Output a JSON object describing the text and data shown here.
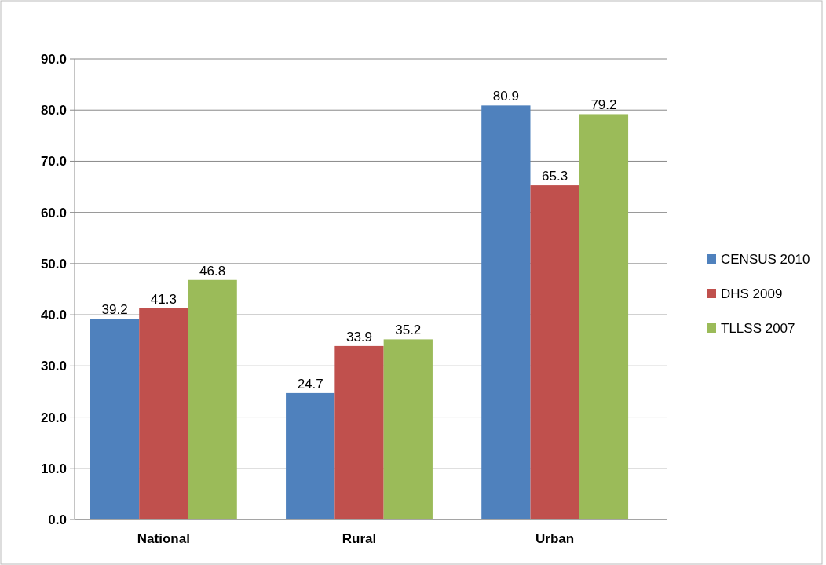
{
  "chart_data": {
    "type": "bar",
    "categories": [
      "National",
      "Rural",
      "Urban"
    ],
    "series": [
      {
        "name": "CENSUS 2010",
        "color": "#4f81bd",
        "values": [
          39.2,
          24.7,
          80.9
        ]
      },
      {
        "name": "DHS 2009",
        "color": "#c0504d",
        "values": [
          41.3,
          33.9,
          65.3
        ]
      },
      {
        "name": "TLLSS 2007",
        "color": "#9bbb59",
        "values": [
          46.8,
          35.2,
          79.2
        ]
      }
    ],
    "ylim": [
      0,
      90
    ],
    "yticks": [
      {
        "value": 0,
        "label": "0.0"
      },
      {
        "value": 10,
        "label": "10.0"
      },
      {
        "value": 20,
        "label": "20.0"
      },
      {
        "value": 30,
        "label": "30.0"
      },
      {
        "value": 40,
        "label": "40.0"
      },
      {
        "value": 50,
        "label": "50.0"
      },
      {
        "value": 60,
        "label": "60.0"
      },
      {
        "value": 70,
        "label": "70.0"
      },
      {
        "value": 80,
        "label": "80.0"
      },
      {
        "value": 90,
        "label": "90.0"
      }
    ],
    "grid": "y",
    "legend": "right",
    "data_labels": true
  }
}
